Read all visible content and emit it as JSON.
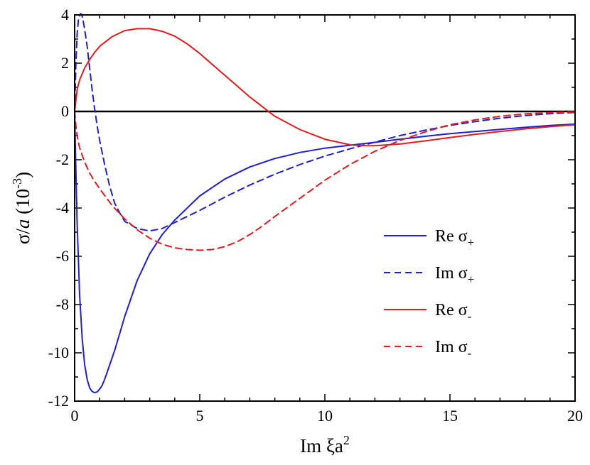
{
  "chart_data": {
    "type": "line",
    "title": "",
    "xlabel": {
      "base": "Im ξa",
      "sup": "2"
    },
    "ylabel": {
      "prefix": "σ/",
      "italic": "a",
      "mid": " (10",
      "sup": "-3",
      "suffix": ")"
    },
    "xlim": [
      0,
      20
    ],
    "ylim": [
      -12,
      4
    ],
    "xticks": [
      0,
      5,
      10,
      15,
      20
    ],
    "yticks": [
      -12,
      -10,
      -8,
      -6,
      -4,
      -2,
      0,
      2,
      4
    ],
    "x_minor_step": 1,
    "y_minor_step": 1,
    "grid": false,
    "zero_line": true,
    "legend_position": "center-right",
    "series": [
      {
        "name": "Re σ+",
        "label_base": "Re σ",
        "label_sub": "+",
        "color": "#1f1fd6",
        "dash": "solid",
        "x": [
          0,
          0.05,
          0.1,
          0.2,
          0.3,
          0.4,
          0.5,
          0.6,
          0.7,
          0.8,
          0.9,
          1.0,
          1.1,
          1.2,
          1.4,
          1.6,
          1.8,
          2.0,
          2.5,
          3.0,
          3.5,
          4.0,
          4.5,
          5.0,
          6.0,
          7.0,
          8.0,
          9.0,
          10.0,
          11.0,
          12.0,
          13.0,
          14.0,
          15.0,
          16.0,
          17.0,
          18.0,
          19.0,
          20.0
        ],
        "y": [
          0,
          -2.5,
          -4.6,
          -7.6,
          -9.4,
          -10.5,
          -11.1,
          -11.45,
          -11.6,
          -11.65,
          -11.62,
          -11.5,
          -11.35,
          -11.1,
          -10.5,
          -9.9,
          -9.2,
          -8.5,
          -7.0,
          -5.9,
          -5.1,
          -4.5,
          -4.0,
          -3.5,
          -2.8,
          -2.3,
          -1.95,
          -1.7,
          -1.52,
          -1.4,
          -1.28,
          -1.15,
          -1.03,
          -0.92,
          -0.83,
          -0.74,
          -0.66,
          -0.58,
          -0.52
        ]
      },
      {
        "name": "Im σ+",
        "label_base": "Im σ",
        "label_sub": "+",
        "color": "#1f1fd6",
        "dash": "dashed",
        "x": [
          0,
          0.05,
          0.1,
          0.15,
          0.2,
          0.25,
          0.3,
          0.35,
          0.4,
          0.5,
          0.6,
          0.7,
          0.8,
          0.9,
          1.0,
          1.2,
          1.4,
          1.6,
          1.8,
          2.0,
          2.5,
          3.0,
          3.5,
          4.0,
          5.0,
          6.0,
          7.0,
          8.0,
          9.0,
          10.0,
          11.0,
          12.0,
          13.0,
          14.0,
          15.0,
          16.0,
          17.0,
          18.0,
          19.0,
          20.0
        ],
        "y": [
          0,
          2.0,
          3.2,
          3.8,
          4.0,
          4.05,
          3.95,
          3.7,
          3.4,
          2.7,
          1.8,
          0.9,
          0.1,
          -0.6,
          -1.2,
          -2.2,
          -3.1,
          -3.8,
          -4.2,
          -4.55,
          -4.85,
          -4.95,
          -4.85,
          -4.6,
          -4.1,
          -3.55,
          -3.05,
          -2.6,
          -2.2,
          -1.85,
          -1.55,
          -1.27,
          -1.0,
          -0.78,
          -0.58,
          -0.42,
          -0.28,
          -0.17,
          -0.09,
          -0.04
        ]
      },
      {
        "name": "Re σ-",
        "label_base": "Re σ",
        "label_sub": "-",
        "color": "#e61c1c",
        "dash": "solid",
        "x": [
          0,
          0.1,
          0.2,
          0.4,
          0.6,
          0.8,
          1.0,
          1.5,
          2.0,
          2.5,
          3.0,
          3.5,
          4.0,
          4.5,
          5.0,
          5.5,
          6.0,
          6.5,
          7.0,
          7.5,
          8.0,
          9.0,
          10.0,
          11.0,
          11.5,
          12.0,
          13.0,
          14.0,
          15.0,
          16.0,
          17.0,
          18.0,
          19.0,
          20.0
        ],
        "y": [
          0,
          0.9,
          1.3,
          1.8,
          2.15,
          2.45,
          2.7,
          3.1,
          3.35,
          3.43,
          3.43,
          3.32,
          3.12,
          2.8,
          2.4,
          1.95,
          1.5,
          1.05,
          0.6,
          0.2,
          -0.2,
          -0.75,
          -1.15,
          -1.38,
          -1.42,
          -1.42,
          -1.35,
          -1.22,
          -1.08,
          -0.95,
          -0.83,
          -0.72,
          -0.63,
          -0.55
        ]
      },
      {
        "name": "Im σ-",
        "label_base": "Im σ",
        "label_sub": "-",
        "color": "#e61c1c",
        "dash": "dashed",
        "x": [
          0,
          0.05,
          0.1,
          0.2,
          0.4,
          0.6,
          0.8,
          1.0,
          1.5,
          2.0,
          2.5,
          3.0,
          3.5,
          4.0,
          4.5,
          5.0,
          5.5,
          6.0,
          6.5,
          7.0,
          7.5,
          8.0,
          9.0,
          10.0,
          11.0,
          12.0,
          13.0,
          14.0,
          15.0,
          16.0,
          17.0,
          18.0,
          19.0,
          20.0
        ],
        "y": [
          0,
          -0.6,
          -1.0,
          -1.5,
          -2.1,
          -2.55,
          -2.9,
          -3.2,
          -3.9,
          -4.45,
          -4.9,
          -5.25,
          -5.5,
          -5.65,
          -5.72,
          -5.75,
          -5.72,
          -5.6,
          -5.4,
          -5.1,
          -4.75,
          -4.35,
          -3.6,
          -2.85,
          -2.2,
          -1.65,
          -1.2,
          -0.85,
          -0.55,
          -0.35,
          -0.2,
          -0.1,
          -0.05,
          -0.02
        ]
      }
    ]
  }
}
